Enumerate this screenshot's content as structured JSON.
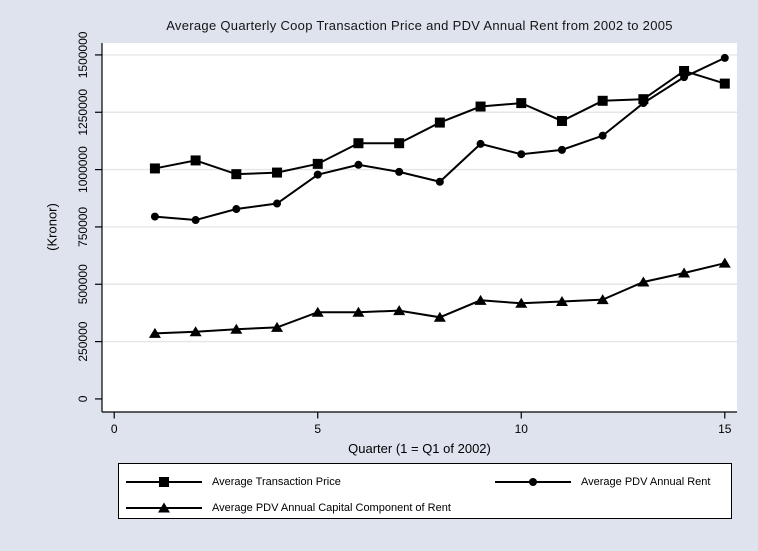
{
  "chart_data": {
    "type": "line",
    "title": "Average Quarterly Coop Transaction Price and PDV Annual Rent from 2002 to 2005",
    "xlabel": "Quarter (1 = Q1 of 2002)",
    "ylabel": "(Kronor)",
    "x": [
      1,
      2,
      3,
      4,
      5,
      6,
      7,
      8,
      9,
      10,
      11,
      12,
      13,
      14,
      15
    ],
    "series": [
      {
        "name": "Average Transaction Price",
        "marker": "square",
        "values": [
          1005000,
          1040000,
          980000,
          987000,
          1025000,
          1115000,
          1115000,
          1205000,
          1275000,
          1290000,
          1212000,
          1300000,
          1307000,
          1430000,
          1375000
        ]
      },
      {
        "name": "Average PDV Annual Rent",
        "marker": "circle",
        "values": [
          795000,
          780000,
          828000,
          852000,
          978000,
          1021000,
          990000,
          947000,
          1112000,
          1067000,
          1086000,
          1148000,
          1290000,
          1403000,
          1487000
        ]
      },
      {
        "name": "Average PDV Annual Capital Component of Rent",
        "marker": "triangle",
        "values": [
          286000,
          293000,
          304000,
          312000,
          378000,
          378000,
          385000,
          356000,
          430000,
          417000,
          425000,
          433000,
          510000,
          549000,
          592000
        ]
      }
    ],
    "xticks": [
      0,
      5,
      10,
      15
    ],
    "yticks": [
      0,
      250000,
      500000,
      750000,
      1000000,
      1250000,
      1500000
    ],
    "xlim": [
      -0.3,
      15.3
    ],
    "ylim": [
      -57000,
      1552000
    ],
    "grid": true,
    "legend_position": "bottom",
    "colors": {
      "background": "#DEE3EE",
      "plot_background": "#FFFFFF",
      "grid": "#E6E6E6",
      "foreground": "#000000",
      "legend_background": "#FFFFFF",
      "legend_border": "#000000"
    }
  }
}
